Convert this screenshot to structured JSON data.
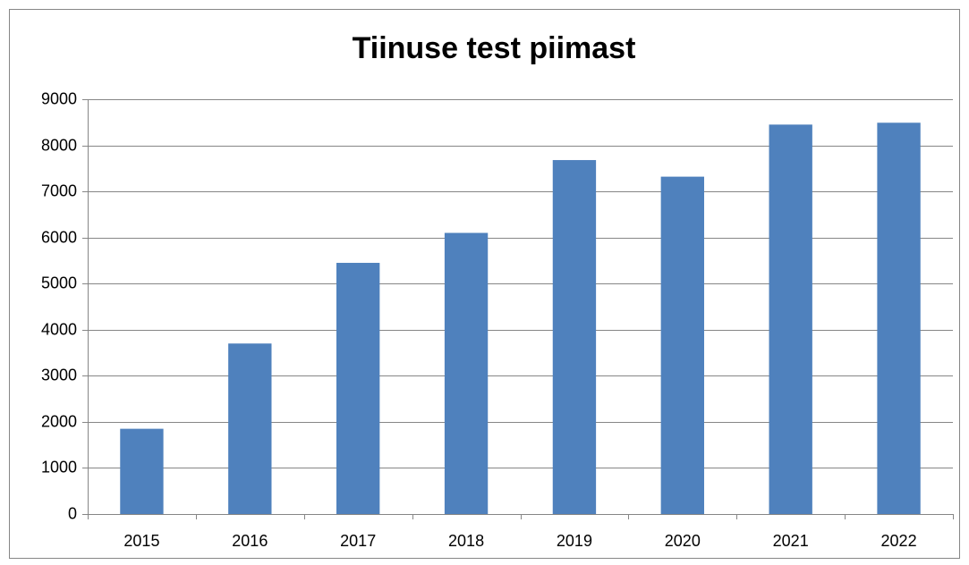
{
  "chart_data": {
    "type": "bar",
    "title": "Tiinuse test piimast",
    "categories": [
      "2015",
      "2016",
      "2017",
      "2018",
      "2019",
      "2020",
      "2021",
      "2022"
    ],
    "values": [
      1850,
      3700,
      5450,
      6100,
      7680,
      7320,
      8450,
      8490
    ],
    "color": "#4f81bd",
    "ylim": [
      0,
      9000
    ],
    "yticks": [
      0,
      1000,
      2000,
      3000,
      4000,
      5000,
      6000,
      7000,
      8000,
      9000
    ],
    "grid": true
  }
}
